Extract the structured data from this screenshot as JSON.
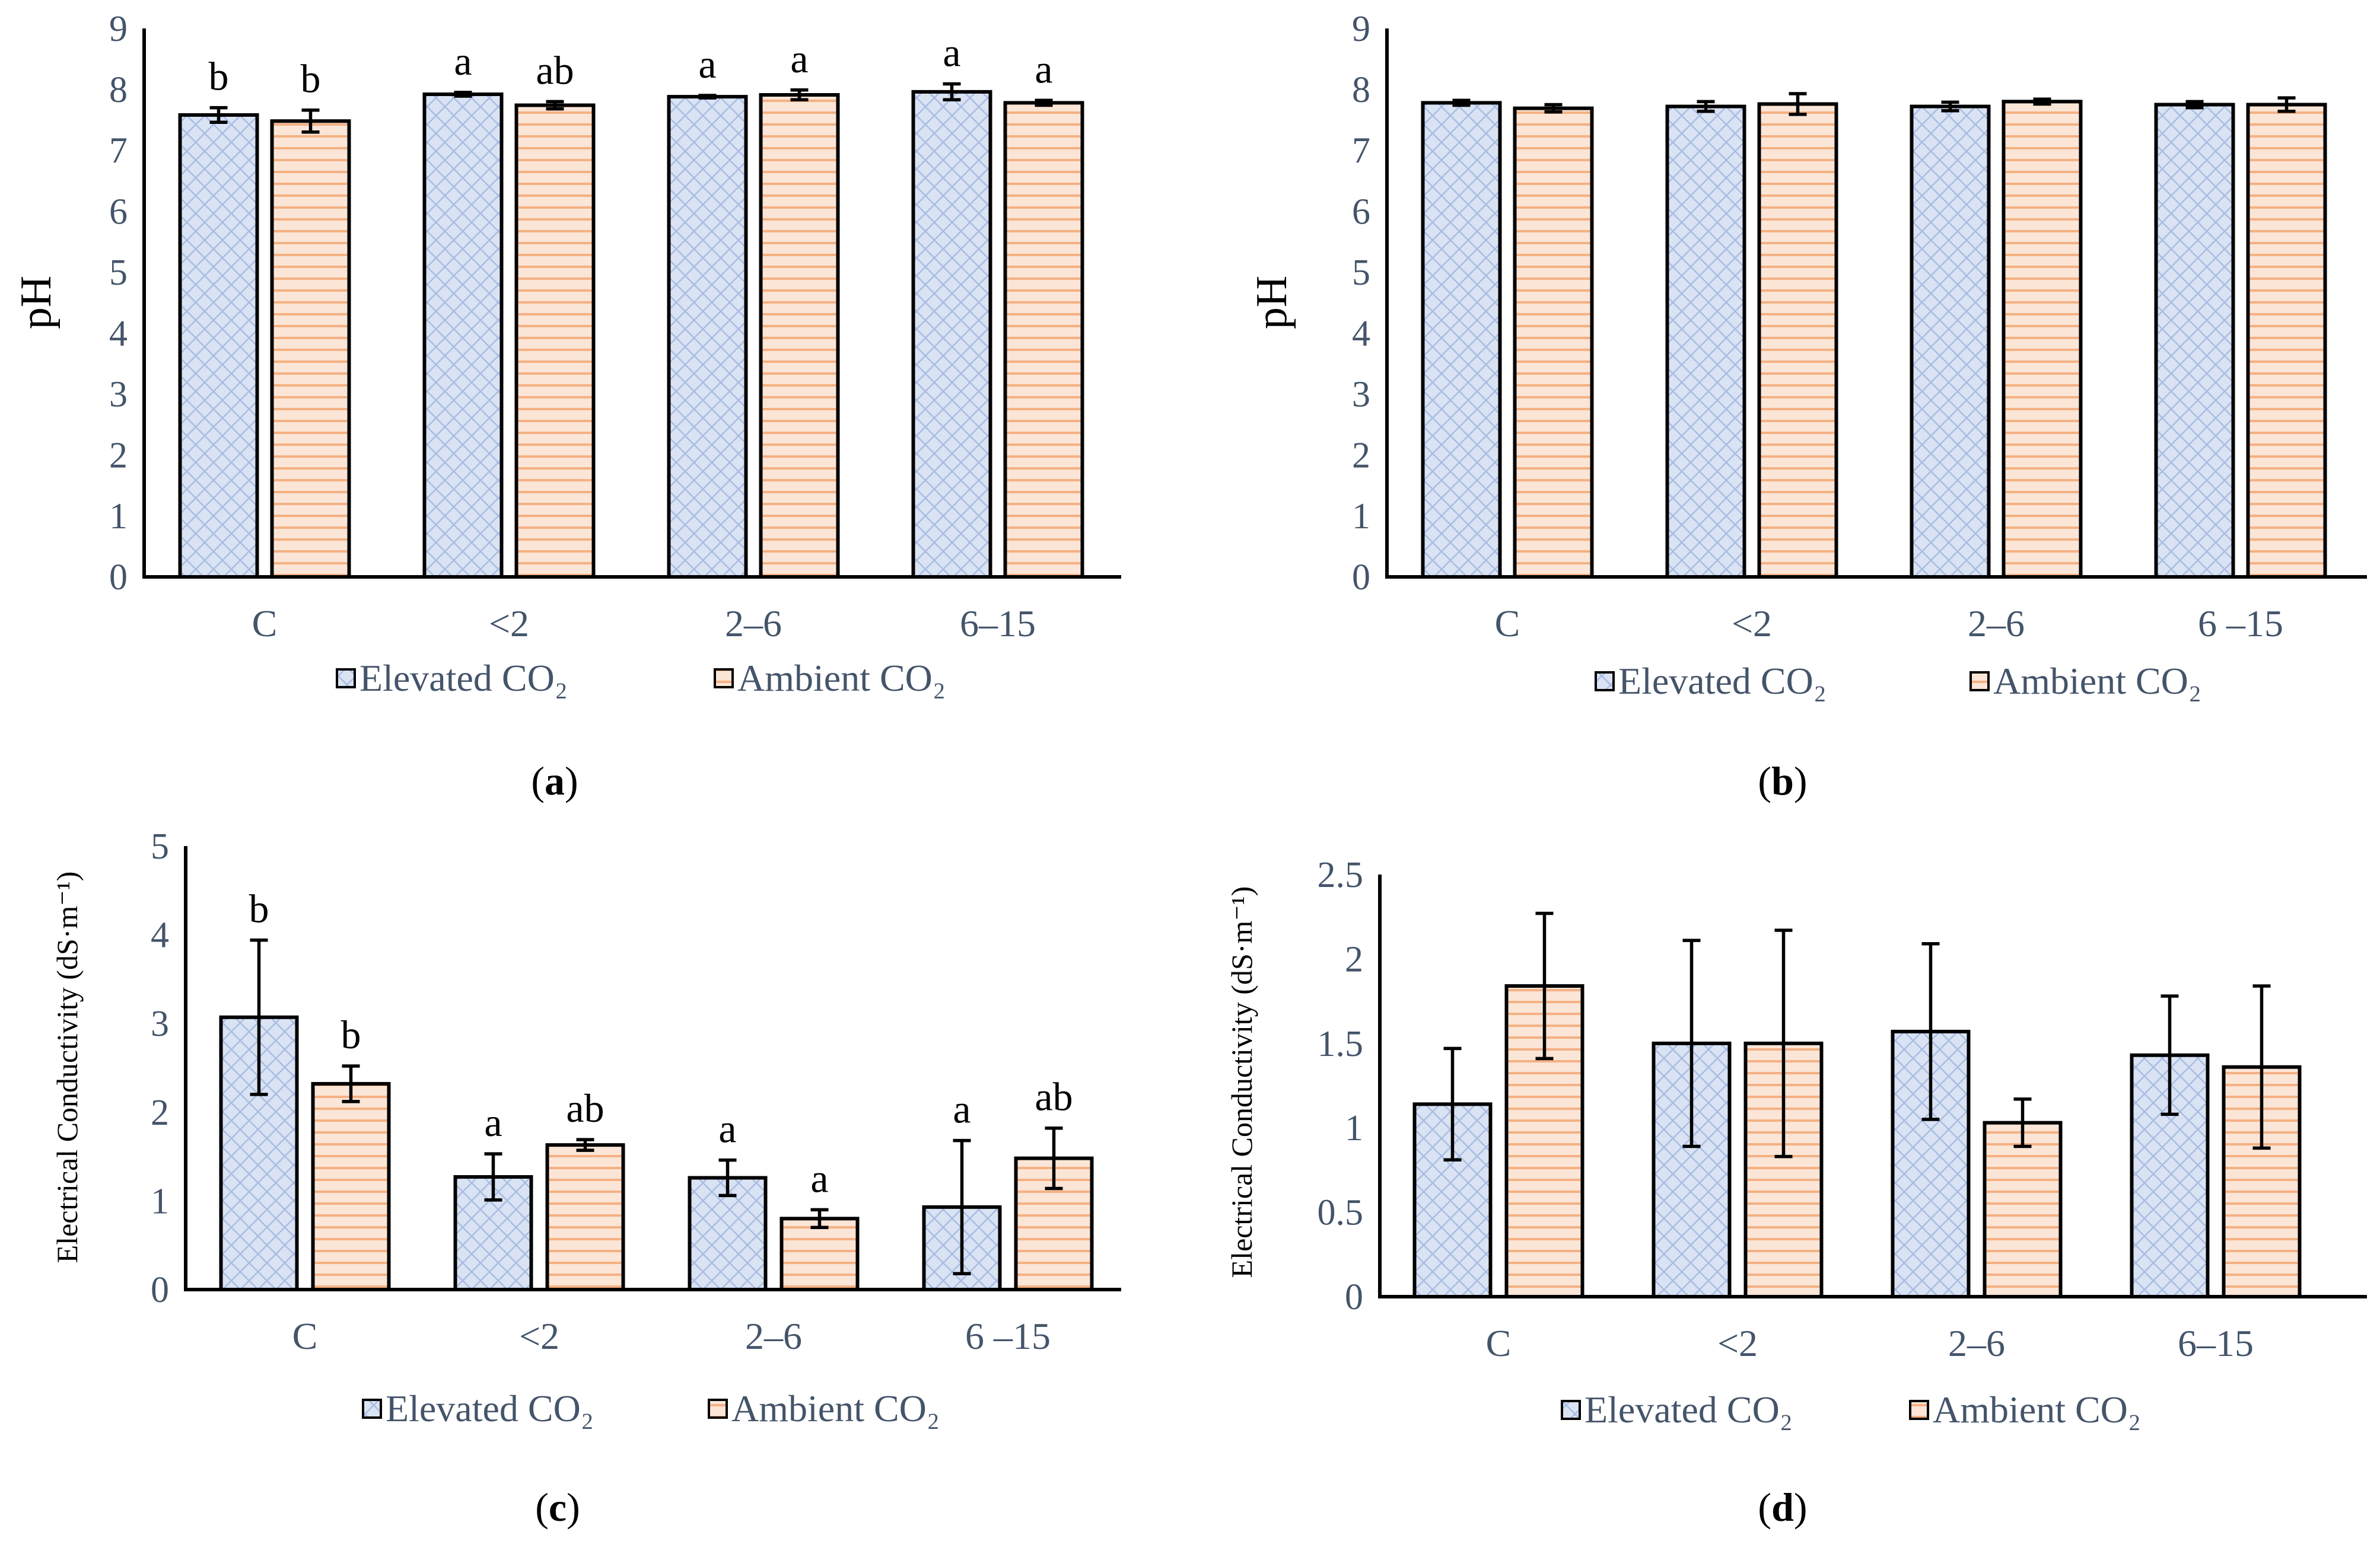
{
  "legend": {
    "elevated": "Elevated CO₂",
    "ambient": "Ambient CO₂"
  },
  "colors": {
    "elevated_fill": "#dae3f3",
    "elevated_hatch": "#a9bde3",
    "ambient_fill": "#fbe5d6",
    "ambient_hatch": "#f4b183"
  },
  "chart_data": [
    {
      "type": "bar",
      "panel": "a",
      "panel_label": "a",
      "ylabel": "pH",
      "ylim": [
        0,
        9
      ],
      "yticks": [
        0,
        1,
        2,
        3,
        4,
        5,
        6,
        7,
        8,
        9
      ],
      "categories": [
        "C",
        "<2",
        "2–6",
        "6–15"
      ],
      "series": [
        {
          "name": "Elevated CO₂",
          "values": [
            7.58,
            7.92,
            7.88,
            7.96
          ],
          "errors": [
            0.12,
            0.03,
            0.02,
            0.13
          ],
          "letters": [
            "b",
            "a",
            "a",
            "a"
          ]
        },
        {
          "name": "Ambient CO₂",
          "values": [
            7.48,
            7.74,
            7.91,
            7.78
          ],
          "errors": [
            0.18,
            0.06,
            0.08,
            0.04
          ],
          "letters": [
            "b",
            "ab",
            "a",
            "a"
          ]
        }
      ]
    },
    {
      "type": "bar",
      "panel": "b",
      "panel_label": "b",
      "ylabel": "pH",
      "ylim": [
        0,
        9
      ],
      "yticks": [
        0,
        1,
        2,
        3,
        4,
        5,
        6,
        7,
        8,
        9
      ],
      "categories": [
        "C",
        "<2",
        "2–6",
        "6 –15"
      ],
      "series": [
        {
          "name": "Elevated CO₂",
          "values": [
            7.78,
            7.72,
            7.72,
            7.75
          ],
          "errors": [
            0.04,
            0.08,
            0.07,
            0.05
          ],
          "letters": []
        },
        {
          "name": "Ambient CO₂",
          "values": [
            7.69,
            7.76,
            7.8,
            7.75
          ],
          "errors": [
            0.06,
            0.17,
            0.04,
            0.11
          ],
          "letters": []
        }
      ]
    },
    {
      "type": "bar",
      "panel": "c",
      "panel_label": "c",
      "ylabel": "Electrical Conductivity  (dS·m⁻¹)",
      "ylim": [
        0,
        5
      ],
      "yticks": [
        0,
        1,
        2,
        3,
        4,
        5
      ],
      "categories": [
        "C",
        "<2",
        "2–6",
        "6 –15"
      ],
      "series": [
        {
          "name": "Elevated CO₂",
          "values": [
            3.07,
            1.27,
            1.26,
            0.93
          ],
          "errors": [
            0.87,
            0.26,
            0.2,
            0.75
          ],
          "letters": [
            "b",
            "a",
            "a",
            "a"
          ]
        },
        {
          "name": "Ambient CO₂",
          "values": [
            2.32,
            1.63,
            0.8,
            1.48
          ],
          "errors": [
            0.2,
            0.06,
            0.1,
            0.34
          ],
          "letters": [
            "b",
            "ab",
            "a",
            "ab"
          ]
        }
      ]
    },
    {
      "type": "bar",
      "panel": "d",
      "panel_label": "d",
      "ylabel": "Electrical Conductivity  (dS·m⁻¹)",
      "ylim": [
        0,
        2.5
      ],
      "yticks": [
        0,
        0.5,
        1,
        1.5,
        2,
        2.5
      ],
      "categories": [
        "C",
        "<2",
        "2–6",
        "6–15"
      ],
      "series": [
        {
          "name": "Elevated CO₂",
          "values": [
            1.14,
            1.5,
            1.57,
            1.43
          ],
          "errors": [
            0.33,
            0.61,
            0.52,
            0.35
          ],
          "letters": []
        },
        {
          "name": "Ambient CO₂",
          "values": [
            1.84,
            1.5,
            1.03,
            1.36
          ],
          "errors": [
            0.43,
            0.67,
            0.14,
            0.48
          ],
          "letters": []
        }
      ]
    }
  ]
}
